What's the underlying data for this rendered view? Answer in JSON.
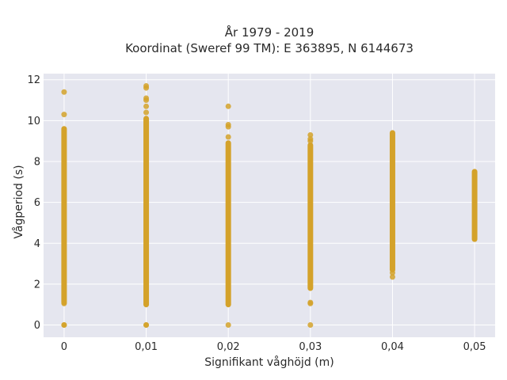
{
  "chart_data": {
    "type": "scatter",
    "title_line1": "År 1979 - 2019",
    "title_line2": "Koordinat (Sweref 99 TM): E 363895, N 6144673",
    "xlabel": "Signifikant våghöjd (m)",
    "ylabel": "Vågperiod (s)",
    "x_ticks": [
      0,
      0.01,
      0.02,
      0.03,
      0.04,
      0.05
    ],
    "x_tick_labels": [
      "0",
      "0,01",
      "0,02",
      "0,03",
      "0,04",
      "0,05"
    ],
    "y_ticks": [
      0,
      2,
      4,
      6,
      8,
      10,
      12
    ],
    "y_tick_labels": [
      "0",
      "2",
      "4",
      "6",
      "8",
      "10",
      "12"
    ],
    "xlim": [
      -0.0025,
      0.0525
    ],
    "ylim": [
      -0.6,
      12.3
    ],
    "grid": true,
    "legend": "none",
    "colors": {
      "marker": "#d4a22a",
      "plot_bg": "#e5e6ef",
      "grid": "#ffffff"
    },
    "series": [
      {
        "x": 0,
        "bands": [
          [
            1.1,
            9.6
          ]
        ],
        "points": [
          0.0,
          0.0,
          1.05,
          10.3,
          11.4
        ]
      },
      {
        "x": 0.01,
        "bands": [
          [
            1.0,
            10.1
          ]
        ],
        "points": [
          0.0,
          0.0,
          10.4,
          10.7,
          11.0,
          11.1,
          11.6,
          11.7
        ]
      },
      {
        "x": 0.02,
        "bands": [
          [
            1.0,
            8.9
          ]
        ],
        "points": [
          0.0,
          9.2,
          9.7,
          9.8,
          10.7
        ]
      },
      {
        "x": 0.03,
        "bands": [
          [
            1.8,
            8.8
          ]
        ],
        "points": [
          0.0,
          1.05,
          1.1,
          9.0,
          9.1,
          9.3
        ]
      },
      {
        "x": 0.04,
        "bands": [
          [
            2.7,
            9.4
          ]
        ],
        "points": [
          2.35,
          2.55
        ]
      },
      {
        "x": 0.05,
        "bands": [
          [
            4.2,
            7.5
          ]
        ],
        "points": []
      }
    ]
  }
}
